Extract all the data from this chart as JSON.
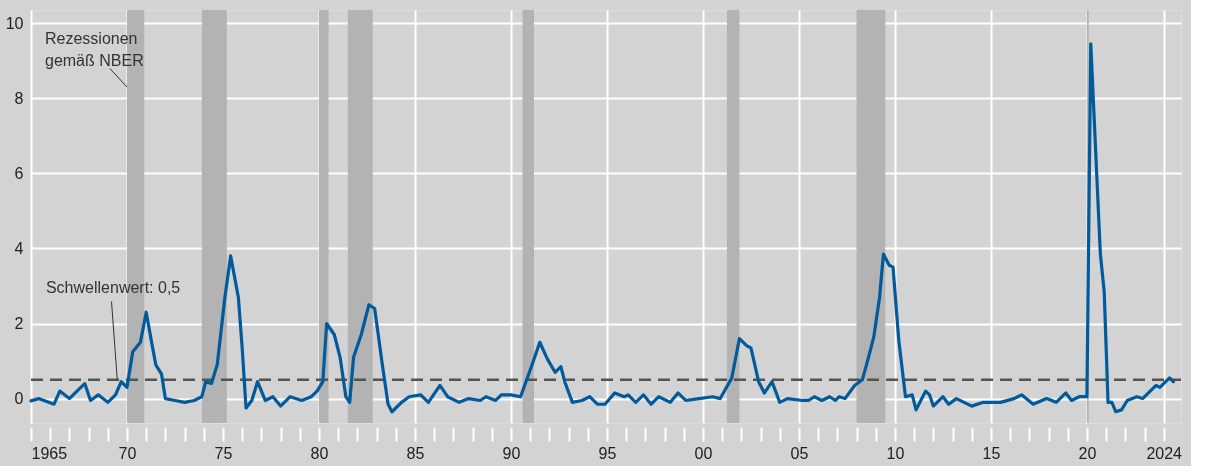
{
  "chart_data": {
    "type": "line",
    "x": [
      1965.0,
      1965.4,
      1966.2,
      1966.5,
      1967.0,
      1967.5,
      1967.8,
      1968.1,
      1968.5,
      1969.0,
      1969.4,
      1969.7,
      1970.0,
      1970.3,
      1970.7,
      1971.0,
      1971.3,
      1971.5,
      1971.8,
      1972.0,
      1972.5,
      1973.0,
      1973.5,
      1973.9,
      1974.1,
      1974.4,
      1974.7,
      1975.1,
      1975.4,
      1975.8,
      1976.0,
      1976.2,
      1976.5,
      1976.8,
      1977.2,
      1977.6,
      1978.0,
      1978.5,
      1979.1,
      1979.6,
      1979.9,
      1980.2,
      1980.4,
      1980.8,
      1981.1,
      1981.4,
      1981.6,
      1981.8,
      1982.2,
      1982.6,
      1982.9,
      1983.3,
      1983.6,
      1983.8,
      1984.3,
      1984.7,
      1985.3,
      1985.7,
      1986.3,
      1986.7,
      1987.3,
      1987.8,
      1988.4,
      1988.7,
      1989.2,
      1989.5,
      1990.0,
      1990.5,
      1991.1,
      1991.5,
      1991.9,
      1992.3,
      1992.6,
      1992.8,
      1993.2,
      1993.7,
      1994.1,
      1994.5,
      1994.9,
      1995.4,
      1995.9,
      1996.1,
      1996.5,
      1996.9,
      1997.3,
      1997.7,
      1998.3,
      1998.7,
      1999.1,
      1999.8,
      2000.5,
      2000.9,
      2001.5,
      2001.9,
      2002.3,
      2002.5,
      2002.9,
      2003.2,
      2003.6,
      2004.0,
      2004.4,
      2005.2,
      2005.5,
      2005.8,
      2006.2,
      2006.6,
      2006.9,
      2007.1,
      2007.4,
      2007.9,
      2008.3,
      2008.6,
      2008.9,
      2009.2,
      2009.4,
      2009.7,
      2009.9,
      2010.2,
      2010.55,
      2010.9,
      2011.1,
      2011.6,
      2011.8,
      2012.0,
      2012.5,
      2012.8,
      2013.2,
      2014.0,
      2014.6,
      2015.5,
      2016.2,
      2016.6,
      2017.2,
      2017.9,
      2018.4,
      2018.9,
      2019.2,
      2019.6,
      2020.0,
      2020.2,
      2020.7,
      2020.9,
      2021.1,
      2021.3,
      2021.5,
      2021.8,
      2022.1,
      2022.6,
      2022.9,
      2023.6,
      2023.8,
      2024.3,
      2024.5
    ],
    "series": [
      {
        "color": "#005a9c",
        "values": [
          -0.06,
          0,
          -0.15,
          0.2,
          0,
          0.25,
          0.4,
          -0.05,
          0.1,
          -0.1,
          0.1,
          0.45,
          0.3,
          1.25,
          1.5,
          2.3,
          1.45,
          0.9,
          0.65,
          0,
          -0.05,
          -0.1,
          -0.05,
          0.05,
          0.45,
          0.4,
          0.9,
          2.7,
          3.8,
          2.7,
          1.35,
          -0.25,
          -0.05,
          0.45,
          -0.05,
          0.05,
          -0.2,
          0.05,
          -0.05,
          0.05,
          0.2,
          0.45,
          2.0,
          1.7,
          1.1,
          0.05,
          -0.1,
          1.1,
          1.7,
          2.5,
          2.4,
          0.9,
          -0.15,
          -0.35,
          -0.1,
          0.05,
          0.1,
          -0.1,
          0.35,
          0.05,
          -0.1,
          0,
          -0.05,
          0.05,
          -0.05,
          0.1,
          0.1,
          0.05,
          0.9,
          1.5,
          1.05,
          0.7,
          0.85,
          0.45,
          -0.1,
          -0.05,
          0.05,
          -0.15,
          -0.15,
          0.15,
          0.05,
          0.1,
          -0.1,
          0.1,
          -0.15,
          0.05,
          -0.1,
          0.15,
          -0.05,
          0,
          0.05,
          0,
          0.55,
          1.6,
          1.4,
          1.35,
          0.45,
          0.15,
          0.45,
          -0.1,
          0,
          -0.05,
          -0.05,
          0.05,
          -0.05,
          0.05,
          -0.05,
          0.05,
          0,
          0.35,
          0.5,
          1.05,
          1.65,
          2.7,
          3.85,
          3.55,
          3.5,
          1.55,
          0.05,
          0.1,
          -0.3,
          0.2,
          0.1,
          -0.2,
          0.05,
          -0.15,
          0,
          -0.2,
          -0.1,
          -0.1,
          0,
          0.1,
          -0.15,
          0,
          -0.1,
          0.15,
          -0.05,
          0.05,
          0.05,
          9.45,
          3.85,
          2.85,
          -0.1,
          -0.1,
          -0.35,
          -0.3,
          -0.05,
          0.05,
          0,
          0.35,
          0.3,
          0.55,
          0.45
        ]
      }
    ],
    "xlim": [
      1965,
      2024.9
    ],
    "ylim": [
      -0.65,
      10.35
    ],
    "yticks": [
      0,
      2,
      4,
      6,
      8,
      10
    ],
    "xticks": [
      {
        "value": 1965,
        "label": "1965"
      },
      {
        "value": 1966,
        "label": null
      },
      {
        "value": 1967,
        "label": null
      },
      {
        "value": 1968,
        "label": null
      },
      {
        "value": 1969,
        "label": null
      },
      {
        "value": 1970,
        "label": "70"
      },
      {
        "value": 1971,
        "label": null
      },
      {
        "value": 1972,
        "label": null
      },
      {
        "value": 1973,
        "label": null
      },
      {
        "value": 1974,
        "label": null
      },
      {
        "value": 1975,
        "label": "75"
      },
      {
        "value": 1976,
        "label": null
      },
      {
        "value": 1977,
        "label": null
      },
      {
        "value": 1978,
        "label": null
      },
      {
        "value": 1979,
        "label": null
      },
      {
        "value": 1980,
        "label": "80"
      },
      {
        "value": 1981,
        "label": null
      },
      {
        "value": 1982,
        "label": null
      },
      {
        "value": 1983,
        "label": null
      },
      {
        "value": 1984,
        "label": null
      },
      {
        "value": 1985,
        "label": "85"
      },
      {
        "value": 1986,
        "label": null
      },
      {
        "value": 1987,
        "label": null
      },
      {
        "value": 1988,
        "label": null
      },
      {
        "value": 1989,
        "label": null
      },
      {
        "value": 1990,
        "label": "90"
      },
      {
        "value": 1991,
        "label": null
      },
      {
        "value": 1992,
        "label": null
      },
      {
        "value": 1993,
        "label": null
      },
      {
        "value": 1994,
        "label": null
      },
      {
        "value": 1995,
        "label": "95"
      },
      {
        "value": 1996,
        "label": null
      },
      {
        "value": 1997,
        "label": null
      },
      {
        "value": 1998,
        "label": null
      },
      {
        "value": 1999,
        "label": null
      },
      {
        "value": 2000,
        "label": "00"
      },
      {
        "value": 2001,
        "label": null
      },
      {
        "value": 2002,
        "label": null
      },
      {
        "value": 2003,
        "label": null
      },
      {
        "value": 2004,
        "label": null
      },
      {
        "value": 2005,
        "label": "05"
      },
      {
        "value": 2006,
        "label": null
      },
      {
        "value": 2007,
        "label": null
      },
      {
        "value": 2008,
        "label": null
      },
      {
        "value": 2009,
        "label": null
      },
      {
        "value": 2010,
        "label": "10"
      },
      {
        "value": 2011,
        "label": null
      },
      {
        "value": 2012,
        "label": null
      },
      {
        "value": 2013,
        "label": null
      },
      {
        "value": 2014,
        "label": null
      },
      {
        "value": 2015,
        "label": "15"
      },
      {
        "value": 2016,
        "label": null
      },
      {
        "value": 2017,
        "label": null
      },
      {
        "value": 2018,
        "label": null
      },
      {
        "value": 2019,
        "label": null
      },
      {
        "value": 2020,
        "label": "20"
      },
      {
        "value": 2021,
        "label": null
      },
      {
        "value": 2022,
        "label": null
      },
      {
        "value": 2023,
        "label": null
      },
      {
        "value": 2024,
        "label": "2024"
      }
    ],
    "bands": [
      {
        "axis": "x",
        "from": 1970.0,
        "to": 1970.9,
        "color": "#b3b3b3"
      },
      {
        "axis": "x",
        "from": 1973.9,
        "to": 1975.2,
        "color": "#b3b3b3"
      },
      {
        "axis": "x",
        "from": 1980.0,
        "to": 1980.5,
        "color": "#b3b3b3"
      },
      {
        "axis": "x",
        "from": 1981.5,
        "to": 1982.8,
        "color": "#b3b3b3"
      },
      {
        "axis": "x",
        "from": 1990.6,
        "to": 1991.2,
        "color": "#b3b3b3"
      },
      {
        "axis": "x",
        "from": 2001.25,
        "to": 2001.9,
        "color": "#b3b3b3"
      },
      {
        "axis": "x",
        "from": 2008.0,
        "to": 2009.5,
        "color": "#b3b3b3"
      },
      {
        "axis": "x",
        "from": 2020.0,
        "to": 2020.1,
        "color": "#b3b3b3"
      }
    ],
    "ref_lines": [
      {
        "axis": "y",
        "value": 0.5,
        "label": "Schwellenwert: 0,5",
        "color": "#555550",
        "line_style": "dashed"
      }
    ],
    "annotations": [
      {
        "text": "Rezessionen\ngemäß NBER",
        "x": 1970.0,
        "y": 8.3
      }
    ],
    "grid": true,
    "line_style": "solid",
    "marker": "none"
  }
}
